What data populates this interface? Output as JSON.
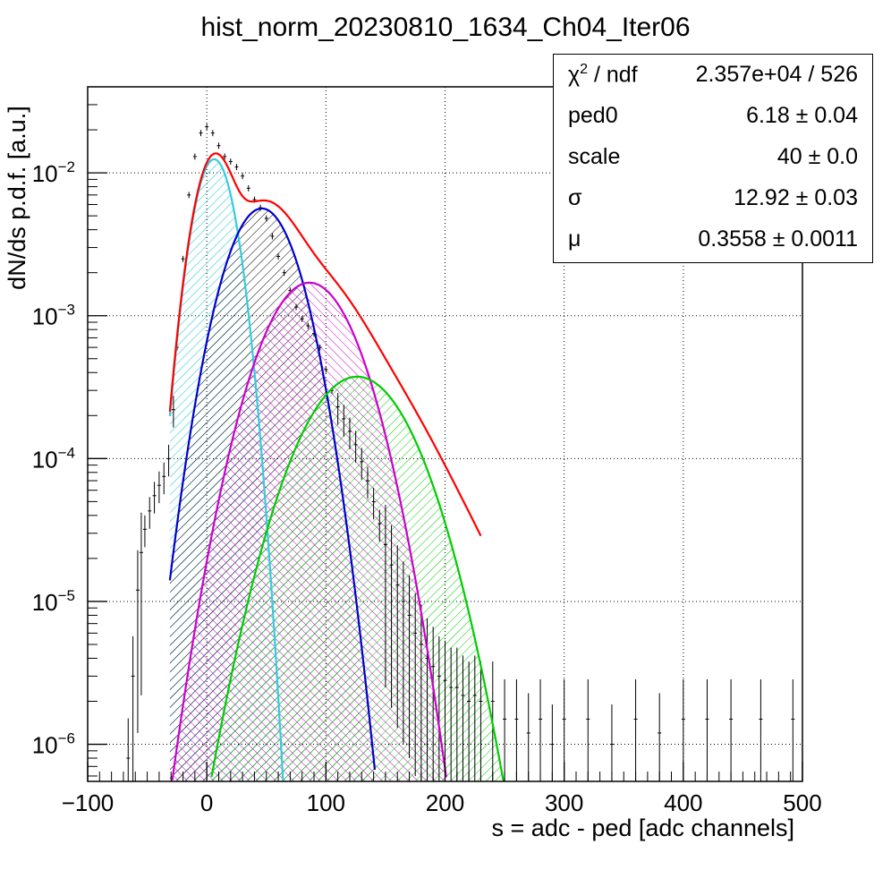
{
  "chart_data": {
    "type": "line",
    "title": "hist_norm_20230810_1634_Ch04_Iter06",
    "xlabel": "s = adc - ped [adc channels]",
    "ylabel": "dN/ds p.d.f. [a.u.]",
    "xlim": [
      -100,
      500
    ],
    "ylim": [
      5.5e-07,
      0.04
    ],
    "yscale": "log",
    "grid": true,
    "x_ticks": [
      "−100",
      "0",
      "100",
      "200",
      "300",
      "400",
      "500"
    ],
    "y_ticks": [
      {
        "value": 1e-06,
        "base": "10",
        "exp": "−6"
      },
      {
        "value": 1e-05,
        "base": "10",
        "exp": "−5"
      },
      {
        "value": 0.0001,
        "base": "10",
        "exp": "−4"
      },
      {
        "value": 0.001,
        "base": "10",
        "exp": "−3"
      },
      {
        "value": 0.01,
        "base": "10",
        "exp": "−2"
      }
    ],
    "fit": {
      "ped0": 6.18,
      "scale": 40,
      "sigma": 12.92,
      "mu": 0.3558,
      "total_color": "#ff0000",
      "x_start": -31,
      "x_end": 230
    },
    "components": [
      {
        "n": 0,
        "color": "#33ccdd",
        "fill": "hatch-cyan"
      },
      {
        "n": 1,
        "color": "#0000cc",
        "fill": "hatch-black"
      },
      {
        "n": 2,
        "color": "#cc00cc",
        "fill": "hatch-magenta"
      },
      {
        "n": 3,
        "color": "#00cc00",
        "fill": "hatch-green"
      }
    ],
    "data_points": [
      [
        -66,
        8e-07
      ],
      [
        -62,
        3e-06
      ],
      [
        -58,
        1.2e-05
      ],
      [
        -55,
        2.2e-05
      ],
      [
        -52,
        3.2e-05
      ],
      [
        -48,
        4.3e-05
      ],
      [
        -44,
        5.5e-05
      ],
      [
        -40,
        6.5e-05
      ],
      [
        -36,
        7.5e-05
      ],
      [
        -32,
        0.0001
      ],
      [
        -28,
        0.00022
      ],
      [
        -25,
        0.0006
      ],
      [
        -20,
        0.0025
      ],
      [
        -15,
        0.007
      ],
      [
        -10,
        0.013
      ],
      [
        -5,
        0.019
      ],
      [
        0,
        0.021
      ],
      [
        5,
        0.019
      ],
      [
        10,
        0.0155
      ],
      [
        15,
        0.013
      ],
      [
        20,
        0.012
      ],
      [
        25,
        0.011
      ],
      [
        30,
        0.0095
      ],
      [
        35,
        0.0078
      ],
      [
        40,
        0.0065
      ],
      [
        45,
        0.0057
      ],
      [
        50,
        0.0048
      ],
      [
        55,
        0.0036
      ],
      [
        60,
        0.0026
      ],
      [
        65,
        0.002
      ],
      [
        70,
        0.0015
      ],
      [
        75,
        0.00115
      ],
      [
        80,
        0.00095
      ],
      [
        85,
        0.00085
      ],
      [
        90,
        0.00075
      ],
      [
        95,
        0.0006
      ],
      [
        100,
        0.00042
      ],
      [
        105,
        0.0003
      ],
      [
        110,
        0.00023
      ],
      [
        115,
        0.00019
      ],
      [
        120,
        0.000155
      ],
      [
        125,
        0.000125
      ],
      [
        130,
        9.5e-05
      ],
      [
        135,
        7e-05
      ],
      [
        140,
        5e-05
      ],
      [
        145,
        3.5e-05
      ],
      [
        150,
        2.5e-05
      ],
      [
        155,
        1.8e-05
      ],
      [
        160,
        1.3e-05
      ],
      [
        165,
        1e-05
      ],
      [
        170,
        8e-06
      ],
      [
        175,
        6e-06
      ],
      [
        180,
        5e-06
      ],
      [
        185,
        4e-06
      ],
      [
        190,
        3.5e-06
      ],
      [
        195,
        3e-06
      ],
      [
        200,
        2.8e-06
      ],
      [
        205,
        2.5e-06
      ],
      [
        210,
        2.5e-06
      ],
      [
        215,
        2.2e-06
      ],
      [
        220,
        2e-06
      ],
      [
        225,
        2.2e-06
      ],
      [
        230,
        2e-06
      ],
      [
        240,
        2e-06
      ],
      [
        250,
        1.5e-06
      ],
      [
        260,
        1.5e-06
      ],
      [
        270,
        1.2e-06
      ],
      [
        280,
        1.5e-06
      ],
      [
        290,
        1e-06
      ],
      [
        300,
        1.5e-06
      ],
      [
        320,
        1.5e-06
      ],
      [
        340,
        1e-06
      ],
      [
        360,
        1.5e-06
      ],
      [
        380,
        1.2e-06
      ],
      [
        400,
        1.5e-06
      ],
      [
        420,
        1.5e-06
      ],
      [
        440,
        1.5e-06
      ],
      [
        465,
        1.5e-06
      ],
      [
        492,
        1.5e-06
      ]
    ]
  },
  "stats_box": {
    "rows": [
      {
        "key": "χ",
        "key_sup": "2",
        "key_tail": " / ndf",
        "value": "2.357e+04 / 526"
      },
      {
        "key": "ped0",
        "key_sup": "",
        "key_tail": "",
        "value": "6.18 ± 0.04"
      },
      {
        "key": "scale",
        "key_sup": "",
        "key_tail": "",
        "value": "40 ± 0.0"
      },
      {
        "key": "σ",
        "key_sup": "",
        "key_tail": "",
        "value": "12.92 ± 0.03"
      },
      {
        "key": "μ",
        "key_sup": "",
        "key_tail": "",
        "value": "0.3558 ± 0.0011"
      }
    ]
  }
}
